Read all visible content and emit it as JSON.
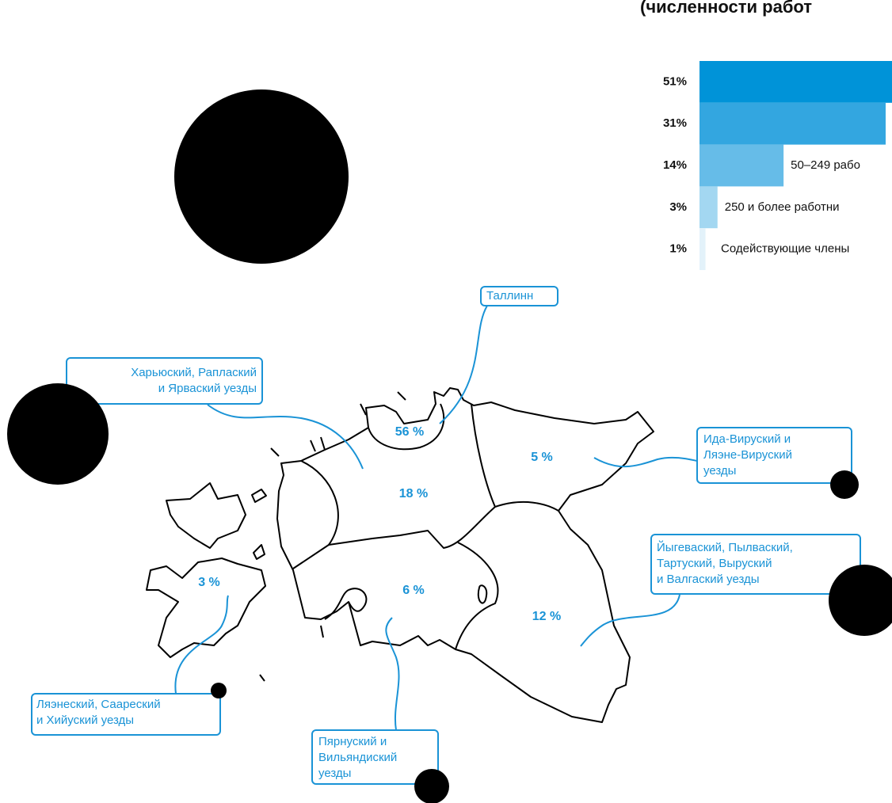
{
  "chart_data": {
    "type": "bar",
    "title": "(численности работ",
    "categories": [
      null,
      null,
      "50–249 рабо",
      "250 и более работни",
      "Содействующие члены"
    ],
    "values": [
      51,
      31,
      14,
      3,
      1
    ],
    "value_labels": [
      "51%",
      "31%",
      "14%",
      "3%",
      "1%"
    ],
    "colors": [
      "#0093d8",
      "#33a6e0",
      "#66bce8",
      "#a3d7f1",
      "#e3f2fa"
    ]
  },
  "map": {
    "regions": [
      {
        "name": [
          "Таллинн"
        ],
        "share": "56 %"
      },
      {
        "name": [
          "Харьюский, Раплаский",
          "и Ярваский уезды"
        ],
        "share": "18 %"
      },
      {
        "name": [
          "Ида-Вируский и",
          "Ляэне-Вируский",
          "уезды"
        ],
        "share": "5 %"
      },
      {
        "name": [
          "Йыгеваский, Пылваский,",
          "Тартуский, Выруский",
          "и Валгаский уезды"
        ],
        "share": "12 %"
      },
      {
        "name": [
          "Ляэнеский, Саареский",
          "и Хийуский уезды"
        ],
        "share": "3 %"
      },
      {
        "name": [
          "Пярнуский и",
          "Вильяндиский",
          "уезды"
        ],
        "share": "6 %"
      }
    ]
  }
}
